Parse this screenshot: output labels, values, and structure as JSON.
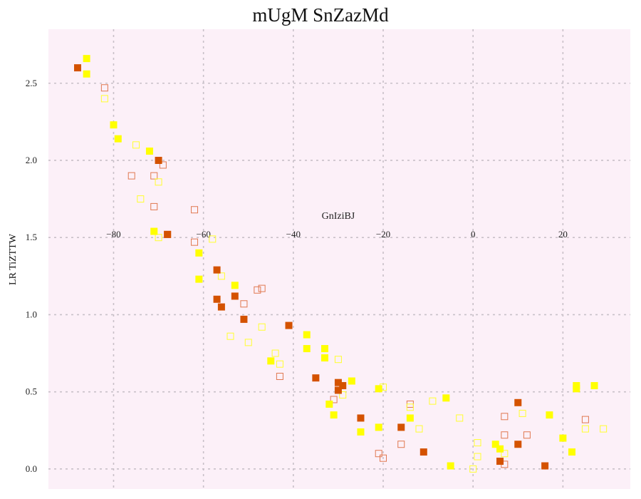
{
  "chart_data": {
    "type": "scatter",
    "title": "mUgM SnZazMd",
    "xlabel": "GnIziBJ",
    "ylabel": "LR TiZTTW",
    "xlim": [
      -94.5,
      35
    ],
    "ylim": [
      -0.13,
      2.85
    ],
    "xticks": [
      "−80",
      "−60",
      "−40",
      "−20",
      "0",
      "20"
    ],
    "xtick_values": [
      -80,
      -60,
      -40,
      -20,
      0,
      20
    ],
    "yticks": [
      "0.0",
      "0.5",
      "1.0",
      "1.5",
      "2.0",
      "2.5"
    ],
    "ytick_values": [
      0,
      0.5,
      1.0,
      1.5,
      2.0,
      2.5
    ],
    "grid": true,
    "background": "#fcf0f8",
    "grid_color": "#c8c0c8",
    "series": [
      {
        "marker": "filled-square",
        "color": "#d45200",
        "x": [
          -88,
          -68,
          -70,
          -57,
          -57,
          -56,
          -53,
          -51,
          -41,
          -35,
          -30,
          -30,
          -29,
          -25,
          -16,
          -11,
          6,
          10,
          10,
          16
        ],
        "y": [
          2.6,
          1.52,
          2.0,
          1.29,
          1.1,
          1.05,
          1.12,
          0.97,
          0.93,
          0.59,
          0.56,
          0.51,
          0.54,
          0.33,
          0.27,
          0.11,
          0.05,
          0.43,
          0.16,
          0.02
        ]
      },
      {
        "marker": "filled-square",
        "color": "#ffff00",
        "x": [
          -86,
          -86,
          -80,
          -79,
          -72,
          -71,
          -61,
          -61,
          -53,
          -45,
          -37,
          -37,
          -33,
          -33,
          -32,
          -31,
          -27,
          -25,
          -21,
          -21,
          -14,
          -6,
          -5,
          5,
          6,
          17,
          20,
          22,
          23,
          23,
          27
        ],
        "y": [
          2.66,
          2.56,
          2.23,
          2.14,
          2.06,
          1.54,
          1.4,
          1.23,
          1.19,
          0.7,
          0.87,
          0.78,
          0.72,
          0.78,
          0.42,
          0.35,
          0.57,
          0.24,
          0.52,
          0.27,
          0.33,
          0.46,
          0.02,
          0.16,
          0.13,
          0.35,
          0.2,
          0.11,
          0.54,
          0.52,
          0.54
        ]
      },
      {
        "marker": "hollow-square",
        "color": "#e07850",
        "x": [
          -82,
          -76,
          -71,
          -71,
          -69,
          -68,
          -62,
          -62,
          -51,
          -48,
          -47,
          -43,
          -31,
          -21,
          -20,
          -16,
          -14,
          7,
          7,
          7,
          12,
          25
        ],
        "y": [
          2.47,
          1.9,
          1.7,
          1.9,
          1.97,
          1.52,
          1.68,
          1.47,
          1.07,
          1.16,
          1.17,
          0.6,
          0.45,
          0.1,
          0.07,
          0.16,
          0.42,
          0.03,
          0.34,
          0.22,
          0.22,
          0.32
        ]
      },
      {
        "marker": "hollow-square",
        "color": "#ffff30",
        "x": [
          -82,
          -75,
          -74,
          -70,
          -70,
          -58,
          -56,
          -54,
          -50,
          -47,
          -44,
          -43,
          -30,
          -29,
          -20,
          -14,
          -12,
          -9,
          -3,
          0,
          1,
          1,
          7,
          11,
          25,
          29
        ],
        "y": [
          2.4,
          2.1,
          1.75,
          1.5,
          1.86,
          1.49,
          1.25,
          0.86,
          0.82,
          0.92,
          0.75,
          0.68,
          0.71,
          0.48,
          0.53,
          0.4,
          0.26,
          0.44,
          0.33,
          0.0,
          0.08,
          0.17,
          0.1,
          0.36,
          0.26,
          0.26
        ]
      }
    ]
  }
}
